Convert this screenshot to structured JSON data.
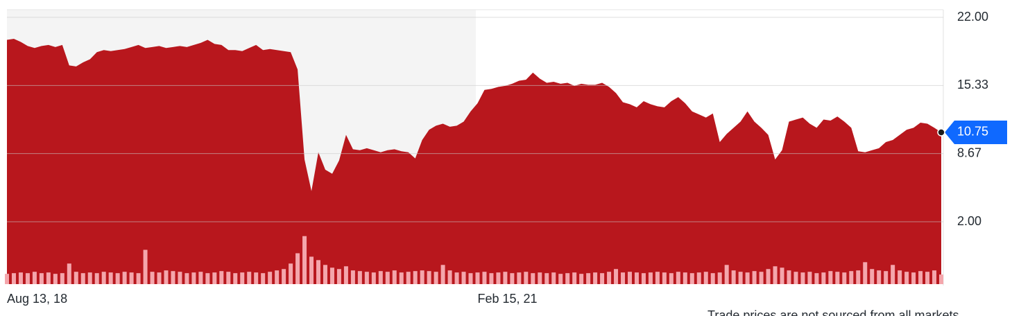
{
  "chart_data": {
    "type": "area",
    "categories": [
      "Aug 13, 18",
      null,
      null,
      null,
      null,
      null,
      null,
      null,
      null,
      null,
      null,
      null,
      null,
      null,
      null,
      null,
      null,
      null,
      null,
      null,
      null,
      null,
      null,
      null,
      null,
      null,
      null,
      null,
      null,
      null,
      null,
      null,
      null,
      null,
      null,
      null,
      null,
      null,
      null,
      null,
      null,
      null,
      null,
      null,
      null,
      null,
      null,
      null,
      null,
      null,
      null,
      null,
      null,
      null,
      null,
      null,
      null,
      null,
      null,
      null,
      null,
      null,
      null,
      null,
      null,
      null,
      null,
      null,
      "Feb 15, 21",
      null,
      null,
      null,
      null,
      null,
      null,
      null,
      null,
      null,
      null,
      null,
      null,
      null,
      null,
      null,
      null,
      null,
      null,
      null,
      null,
      null,
      null,
      null,
      null,
      null,
      null,
      null,
      null,
      null,
      null,
      null,
      null,
      null,
      null,
      null,
      null,
      null,
      null,
      null,
      null,
      null,
      null,
      null,
      null,
      null,
      null,
      null,
      null,
      null,
      null,
      null,
      null,
      null,
      null,
      null,
      null,
      null,
      null,
      null,
      null,
      null,
      null,
      null,
      null,
      null,
      null,
      null
    ],
    "values": [
      19.8,
      19.9,
      19.6,
      19.2,
      19.0,
      19.2,
      19.3,
      19.1,
      19.3,
      17.3,
      17.2,
      17.6,
      17.9,
      18.6,
      18.8,
      18.7,
      18.8,
      18.9,
      19.1,
      19.3,
      19.0,
      19.1,
      19.2,
      19.0,
      19.1,
      19.2,
      19.1,
      19.3,
      19.5,
      19.8,
      19.4,
      19.3,
      18.8,
      18.8,
      18.7,
      19.0,
      19.3,
      18.8,
      18.9,
      18.8,
      18.7,
      18.6,
      16.9,
      8.1,
      5.0,
      8.8,
      7.1,
      6.7,
      8.0,
      10.5,
      9.1,
      9.0,
      9.2,
      9.0,
      8.8,
      9.0,
      9.1,
      8.9,
      8.8,
      8.2,
      10.0,
      11.0,
      11.4,
      11.6,
      11.3,
      11.4,
      11.8,
      12.8,
      13.6,
      14.9,
      15.0,
      15.2,
      15.3,
      15.5,
      15.8,
      15.9,
      16.6,
      16.0,
      15.6,
      15.7,
      15.5,
      15.6,
      15.3,
      15.5,
      15.4,
      15.4,
      15.6,
      15.2,
      14.6,
      13.7,
      13.5,
      13.2,
      13.8,
      13.5,
      13.3,
      13.2,
      13.8,
      14.2,
      13.6,
      12.8,
      12.5,
      12.2,
      12.6,
      9.8,
      10.6,
      11.2,
      11.8,
      12.8,
      11.8,
      11.2,
      10.5,
      8.1,
      9.0,
      11.8,
      12.0,
      12.2,
      11.6,
      11.2,
      12.0,
      11.9,
      12.3,
      11.8,
      11.2,
      8.9,
      8.8,
      9.0,
      9.2,
      9.8,
      10.0,
      10.5,
      11.0,
      11.2,
      11.7,
      11.6,
      11.2,
      10.75
    ],
    "color": "#b8171d",
    "volume": [
      15,
      16,
      17,
      16,
      18,
      16,
      17,
      15,
      16,
      30,
      18,
      16,
      17,
      16,
      18,
      17,
      16,
      18,
      17,
      16,
      50,
      18,
      17,
      20,
      19,
      18,
      16,
      17,
      18,
      16,
      17,
      19,
      18,
      16,
      17,
      18,
      17,
      16,
      18,
      20,
      22,
      30,
      45,
      70,
      40,
      35,
      28,
      24,
      22,
      26,
      20,
      19,
      18,
      17,
      19,
      18,
      20,
      17,
      18,
      19,
      20,
      19,
      18,
      28,
      20,
      17,
      18,
      16,
      17,
      18,
      16,
      17,
      18,
      16,
      17,
      18,
      16,
      17,
      16,
      17,
      15,
      16,
      17,
      15,
      16,
      17,
      16,
      18,
      22,
      17,
      18,
      17,
      16,
      17,
      18,
      17,
      16,
      18,
      17,
      16,
      17,
      18,
      16,
      17,
      28,
      20,
      18,
      17,
      19,
      18,
      22,
      26,
      24,
      20,
      18,
      17,
      18,
      16,
      17,
      19,
      18,
      17,
      19,
      20,
      32,
      22,
      20,
      19,
      28,
      20,
      18,
      17,
      19,
      18,
      20,
      14
    ],
    "volume_color": "#f4a6ac",
    "volume_lim": [
      0,
      100
    ],
    "ylim": [
      -4.1,
      22.75
    ],
    "yticks": [
      {
        "value": 22,
        "label": "22.00"
      },
      15.33,
      8.67,
      {
        "value": 2,
        "label": "2.00"
      }
    ],
    "grid": true,
    "current_price": 10.75,
    "note": "Trade prices are not sourced from all markets"
  }
}
